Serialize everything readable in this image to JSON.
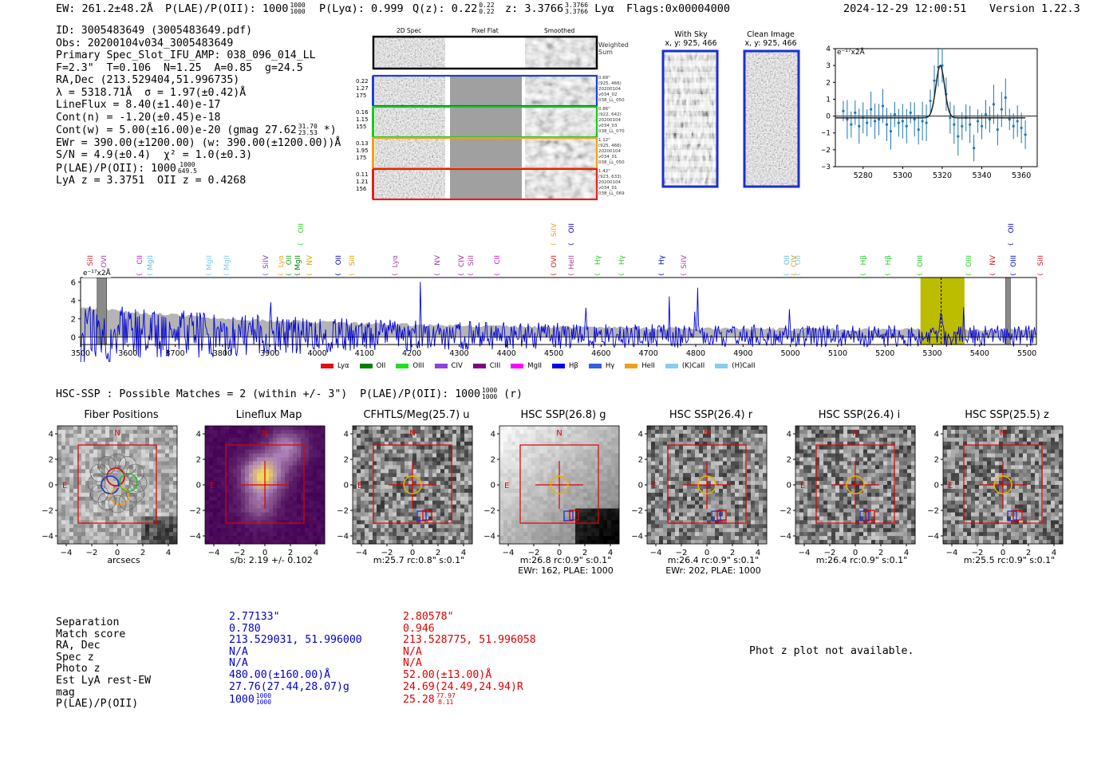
{
  "header": {
    "ew": "EW: 261.2±48.2Å",
    "plae_label": "P(LAE)/P(OII): 1000",
    "plae_hi": "1000",
    "plae_lo": "1000",
    "plya": "P(Lyα): 0.999",
    "qz_label": "Q(z): 0.22",
    "qz_hi": "0.22",
    "qz_lo": "0.22",
    "z_label": "z: 3.3766",
    "z_hi": "3.3766",
    "z_lo": "3.3766",
    "z_line": "Lyα",
    "flags": "Flags:0x00004000",
    "datetime": "2024-12-29 12:00:51",
    "version": "Version 1.22.3"
  },
  "info": {
    "id": "ID: 3005483649 (3005483649.pdf)",
    "obs": "Obs: 20200104v034_3005483649",
    "primary": "Primary Spec_Slot_IFU_AMP: 038_096_014_LL",
    "fiber": "F=2.3\"  T=0.106  N=1.25  A=0.85  g=24.5",
    "radec": "RA,Dec (213.529404,51.996735)",
    "lambda": "λ = 5318.71Å  σ = 1.97(±0.42)Å",
    "lineflux": "LineFlux = 8.40(±1.40)e-17",
    "contn": "Cont(n) = -1.20(±0.45)e-18",
    "contw": "Cont(w) = 5.00(±16.00)e-20 (gmag 27.62",
    "contw_hi": "31.70",
    "contw_lo": "23.53",
    "contw_tail": "*)",
    "ewr": "EWr = 390.00(±1200.00) (w: 390.00(±1200.00))Å",
    "sn": "S/N = 4.9(±0.4)  χ² = 1.0(±0.3)",
    "plae": "P(LAE)/P(OII): 1000",
    "plae_hi": "1000",
    "plae_lo": "649.5",
    "zz": "LyA z = 3.3751  OII z = 0.4268"
  },
  "stack": {
    "col_labels": [
      "2D Spec",
      "Pixel Flat",
      "Smoothed"
    ],
    "weighted_sum": "Weighted\nSum",
    "rows": [
      {
        "nums": "0.22\n1.27\n175",
        "note": "0.68\"\n(925, 466)\n20200104\nv034_02\n038_LL_050",
        "color": "#1f3fd0"
      },
      {
        "nums": "0.16\n1.15\n155",
        "note": "0.86\"\n(922, 642)\n20200104\nv034_03\n038_LL_070",
        "color": "#22c422"
      },
      {
        "nums": "0.13\n1.95\n175",
        "note": "1.12\"\n(925, 466)\n20200104\nv034_01\n038_LL_050",
        "color": "#f0a020"
      },
      {
        "nums": "0.11\n1.21\n156",
        "note": "1.42\"\n(923, 633)\n20200104\nv034_01\n038_LL_069",
        "color": "#e02020"
      }
    ]
  },
  "sky": {
    "with_sky_title": "With Sky",
    "with_sky_xy": "x, y: 925, 466",
    "clean_title": "Clean Image",
    "clean_xy": "x, y: 925, 466"
  },
  "zoom_plot": {
    "unit_label": "e⁻¹⁷x2Å",
    "yticks": [
      "4",
      "3",
      "2",
      "1",
      "0",
      "−1",
      "−2",
      "−3"
    ],
    "xticks": [
      "5280",
      "5300",
      "5320",
      "5340",
      "5360"
    ],
    "ylim": [
      -3,
      4
    ],
    "xlim": [
      5266,
      5368
    ],
    "points": [
      [
        5270,
        0.3
      ],
      [
        5272,
        -0.2
      ],
      [
        5274,
        -0.5
      ],
      [
        5276,
        0.2
      ],
      [
        5278,
        -0.6
      ],
      [
        5280,
        -0.1
      ],
      [
        5282,
        -0.4
      ],
      [
        5284,
        0.4
      ],
      [
        5286,
        -0.3
      ],
      [
        5288,
        -0.2
      ],
      [
        5290,
        0.6
      ],
      [
        5292,
        -0.5
      ],
      [
        5294,
        -0.9
      ],
      [
        5296,
        0.1
      ],
      [
        5298,
        -0.4
      ],
      [
        5300,
        -0.3
      ],
      [
        5302,
        -0.6
      ],
      [
        5304,
        0.2
      ],
      [
        5306,
        -0.2
      ],
      [
        5308,
        -0.8
      ],
      [
        5310,
        -0.3
      ],
      [
        5312,
        -0.4
      ],
      [
        5314,
        0.9
      ],
      [
        5316,
        2.1
      ],
      [
        5318,
        2.9
      ],
      [
        5320,
        3.0
      ],
      [
        5322,
        1.3
      ],
      [
        5324,
        -0.1
      ],
      [
        5326,
        -0.5
      ],
      [
        5328,
        -1.2
      ],
      [
        5330,
        -0.6
      ],
      [
        5332,
        -0.1
      ],
      [
        5334,
        -0.5
      ],
      [
        5336,
        -1.9
      ],
      [
        5338,
        -0.3
      ],
      [
        5340,
        -0.6
      ],
      [
        5342,
        0.1
      ],
      [
        5344,
        -0.2
      ],
      [
        5346,
        0.7
      ],
      [
        5348,
        -0.8
      ],
      [
        5350,
        0.4
      ],
      [
        5352,
        1.1
      ],
      [
        5354,
        -0.2
      ],
      [
        5356,
        -0.6
      ],
      [
        5358,
        -0.3
      ],
      [
        5360,
        -0.7
      ],
      [
        5362,
        -1.1
      ]
    ],
    "fit_center": 5319,
    "fit_sigma": 2.2,
    "fit_amp": 3.1,
    "fit_base": -0.1
  },
  "spectrum": {
    "unit_label": "e⁻¹⁷x2Å",
    "yticks": [
      "6",
      "4",
      "2",
      "0"
    ],
    "xticks": [
      "3500",
      "3600",
      "3700",
      "3800",
      "3900",
      "4000",
      "4100",
      "4200",
      "4300",
      "4400",
      "4500",
      "4600",
      "4700",
      "4800",
      "4900",
      "5000",
      "5100",
      "5200",
      "5300",
      "5400",
      "5500"
    ],
    "xlim": [
      3500,
      5520
    ],
    "ylim": [
      -0.8,
      6.5
    ],
    "highlight_range": [
      5275,
      5368
    ],
    "line_marker": 5318.7,
    "gray_bands": [
      [
        3535,
        3555
      ],
      [
        5455,
        5465
      ]
    ],
    "lines": [
      {
        "name": "SiII",
        "x": 3524,
        "color": "#d02030",
        "row": 0
      },
      {
        "name": "OVI",
        "x": 3553,
        "color": "#a040a0",
        "row": 0
      },
      {
        "name": "CII",
        "x": 3628,
        "color": "#e000e0",
        "row": 0
      },
      {
        "name": "MgII",
        "x": 3650,
        "color": "#60c0e0",
        "row": 0
      },
      {
        "name": "MgII",
        "x": 3775,
        "color": "#80c8e8",
        "row": 0
      },
      {
        "name": "MgII",
        "x": 3812,
        "color": "#80c8e8",
        "row": 0
      },
      {
        "name": "SiIV",
        "x": 3895,
        "color": "#8040c0",
        "row": 0
      },
      {
        "name": "Lyα",
        "x": 3926,
        "color": "#f0a020",
        "row": 0
      },
      {
        "name": "OII",
        "x": 3944,
        "color": "#20a020",
        "row": 0
      },
      {
        "name": "MgII",
        "x": 3962,
        "color": "#008000",
        "row": 0
      },
      {
        "name": "OII",
        "x": 3968,
        "color": "#20d020",
        "row": 1
      },
      {
        "name": "NV",
        "x": 3988,
        "color": "#e0a000",
        "row": 0
      },
      {
        "name": "OII",
        "x": 4048,
        "color": "#0000cc",
        "row": 0
      },
      {
        "name": "SiII",
        "x": 4077,
        "color": "#e0a000",
        "row": 0
      },
      {
        "name": "Lyα",
        "x": 4168,
        "color": "#a040a0",
        "row": 0
      },
      {
        "name": "NV",
        "x": 4257,
        "color": "#a040a0",
        "row": 0
      },
      {
        "name": "CIV",
        "x": 4308,
        "color": "#a020a0",
        "row": 0
      },
      {
        "name": "SiII",
        "x": 4328,
        "color": "#a040a0",
        "row": 0
      },
      {
        "name": "CII",
        "x": 4384,
        "color": "#e000e0",
        "row": 0
      },
      {
        "name": "OVI",
        "x": 4504,
        "color": "#d02020",
        "row": 0
      },
      {
        "name": "SiIV",
        "x": 4504,
        "color": "#f0a020",
        "row": 1
      },
      {
        "name": "HeII",
        "x": 4541,
        "color": "#a040a0",
        "row": 0
      },
      {
        "name": "OII",
        "x": 4541,
        "color": "#0000cc",
        "row": 1
      },
      {
        "name": "Hγ",
        "x": 4596,
        "color": "#20d020",
        "row": 0
      },
      {
        "name": "Hγ",
        "x": 4646,
        "color": "#20d020",
        "row": 0
      },
      {
        "name": "Hγ",
        "x": 4731,
        "color": "#0000cc",
        "row": 0
      },
      {
        "name": "SiIV",
        "x": 4778,
        "color": "#a040a0",
        "row": 0
      },
      {
        "name": "OII",
        "x": 4996,
        "color": "#60c0e0",
        "row": 0
      },
      {
        "name": "CIV",
        "x": 5011,
        "color": "#e0a000",
        "row": 0
      },
      {
        "name": "OII",
        "x": 5020,
        "color": "#80c8e8",
        "row": 0
      },
      {
        "name": "Hβ",
        "x": 5157,
        "color": "#20d020",
        "row": 0
      },
      {
        "name": "Hβ",
        "x": 5210,
        "color": "#20d020",
        "row": 0
      },
      {
        "name": "OIII",
        "x": 5278,
        "color": "#20d020",
        "row": 0
      },
      {
        "name": "OIII",
        "x": 5380,
        "color": "#20d020",
        "row": 0
      },
      {
        "name": "NV",
        "x": 5430,
        "color": "#d02020",
        "row": 0
      },
      {
        "name": "OIII",
        "x": 5475,
        "color": "#0000cc",
        "row": 0
      },
      {
        "name": "OII",
        "x": 5470,
        "color": "#0000cc",
        "row": 1
      },
      {
        "name": "SiII",
        "x": 5532,
        "color": "#d02030",
        "row": 0
      }
    ],
    "legend": [
      {
        "name": "Lyα",
        "color": "#e01010"
      },
      {
        "name": "OII",
        "color": "#008000"
      },
      {
        "name": "OIII",
        "color": "#20e020"
      },
      {
        "name": "CIV",
        "color": "#9040e0"
      },
      {
        "name": "CIII",
        "color": "#800080"
      },
      {
        "name": "MgII",
        "color": "#ff00ff"
      },
      {
        "name": "Hβ",
        "color": "#0000ee"
      },
      {
        "name": "Hγ",
        "color": "#3060e0"
      },
      {
        "name": "HeII",
        "color": "#f0a020"
      },
      {
        "name": "(K)CaII",
        "color": "#87ceeb"
      },
      {
        "name": "(H)CaII",
        "color": "#87ceeb"
      }
    ]
  },
  "hsc": {
    "summary": "HSC-SSP : Possible Matches = 2 (within +/- 3\")  P(LAE)/P(OII): 1000",
    "summary_hi": "1000",
    "summary_lo": "1000",
    "summary_tail": "(r)"
  },
  "cutouts": [
    {
      "title": "Fiber Positions",
      "cap1": "arcsecs",
      "cap2": ""
    },
    {
      "title": "Lineflux Map",
      "cap1": "s/b: 2.19 +/- 0.102",
      "cap2": ""
    },
    {
      "title": "CFHTLS/Meg(25.7) u",
      "cap1": "m:25.7 rc:0.8\"  s:0.1\"",
      "cap2": ""
    },
    {
      "title": "HSC SSP(26.8) g",
      "cap1": "m:26.8 rc:0.9\"  s:0.1\"",
      "cap2": "EWr: 162, PLAE: 1000"
    },
    {
      "title": "HSC SSP(26.4) r",
      "cap1": "m:26.4 rc:0.9\"  s:0.1\"",
      "cap2": "EWr: 202, PLAE: 1000"
    },
    {
      "title": "HSC SSP(26.4) i",
      "cap1": "m:26.4 rc:0.9\"  s:0.1\"",
      "cap2": ""
    },
    {
      "title": "HSC SSP(25.5) z",
      "cap1": "m:25.5 rc:0.9\"  s:0.1\"",
      "cap2": ""
    }
  ],
  "cutout_axes": {
    "yticks": [
      "4",
      "2",
      "0",
      "−2",
      "−4"
    ],
    "xticks": [
      "−4",
      "−2",
      "0",
      "2",
      "4"
    ],
    "north": "N",
    "east": "E"
  },
  "match_table": {
    "labels": [
      "Separation",
      "Match score",
      "RA, Dec",
      "Spec z",
      "Photo z",
      "Est LyA rest-EW",
      "mag",
      "P(LAE)/P(OII)"
    ],
    "col1": [
      "2.77133\"",
      "0.780",
      "213.529031, 51.996000",
      "N/A",
      "N/A",
      "480.00(±160.00)Å",
      "27.76(27.44,28.07)g",
      "1000"
    ],
    "col1_plae_hi": "1000",
    "col1_plae_lo": "1000",
    "col2": [
      "2.80578\"",
      "0.946",
      "213.528775, 51.996058",
      "N/A",
      "N/A",
      "52.00(±13.00)Å",
      "24.69(24.49,24.94)R",
      "25.28"
    ],
    "col2_plae_hi": "77.97",
    "col2_plae_lo": "8.11"
  },
  "photz_note": "Phot z plot not available."
}
